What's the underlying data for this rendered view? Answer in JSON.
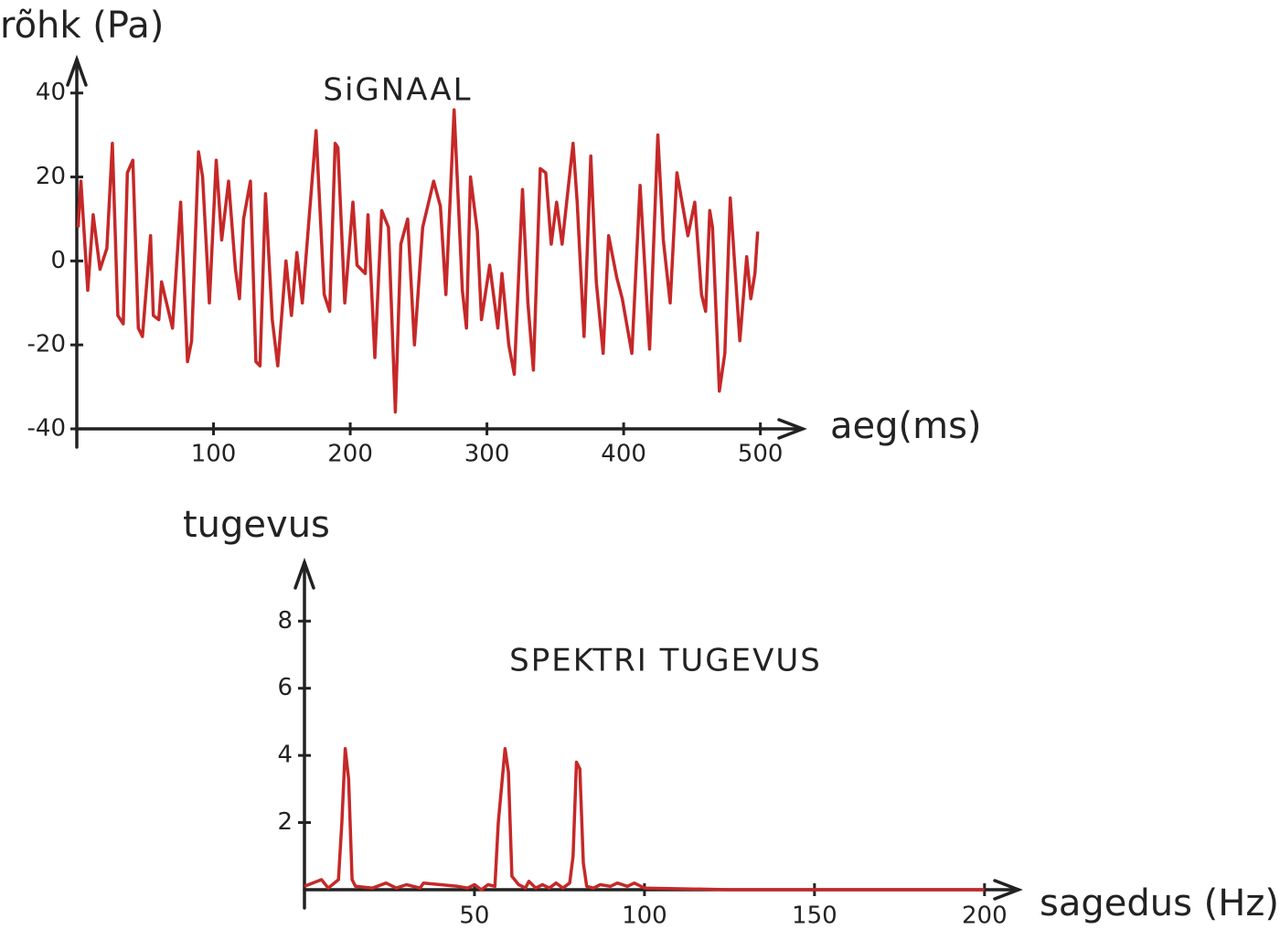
{
  "chart_data": [
    {
      "type": "line",
      "title": "SiGNAAL",
      "xlabel": "aeg(ms)",
      "ylabel": "rõhk (Pa)",
      "xlim": [
        0,
        531
      ],
      "ylim": [
        -40,
        48
      ],
      "xticks": [
        100,
        200,
        300,
        400,
        500
      ],
      "yticks": [
        -40,
        -20,
        0,
        20,
        40
      ],
      "color": "#c62828",
      "x": [
        1,
        3,
        8,
        12,
        17,
        22,
        26,
        30,
        34,
        37,
        41,
        45,
        48,
        54,
        56,
        60,
        62,
        70,
        76,
        81,
        84,
        89,
        92,
        97,
        102,
        106,
        111,
        116,
        119,
        122,
        127,
        131,
        134,
        138,
        143,
        147,
        153,
        157,
        161,
        165,
        175,
        181,
        185,
        189,
        191,
        196,
        202,
        205,
        211,
        213,
        218,
        223,
        228,
        233,
        237,
        242,
        247,
        253,
        261,
        266,
        270,
        276,
        282,
        285,
        288,
        293,
        296,
        302,
        308,
        311,
        316,
        320,
        326,
        330,
        334,
        339,
        343,
        347,
        351,
        355,
        363,
        366,
        371,
        376,
        380,
        385,
        389,
        395,
        399,
        406,
        412,
        419,
        425,
        429,
        434,
        439,
        447,
        452,
        457,
        460,
        463,
        465,
        470,
        474,
        478,
        485,
        490,
        493,
        496,
        498
      ],
      "values": [
        8,
        19,
        -7,
        11,
        -2,
        3,
        28,
        -13,
        -15,
        21,
        24,
        -16,
        -18,
        6,
        -13,
        -14,
        -5,
        -16,
        14,
        -24,
        -19,
        26,
        20,
        -10,
        24,
        5,
        19,
        -2,
        -9,
        10,
        19,
        -24,
        -25,
        16,
        -14,
        -25,
        0,
        -13,
        2,
        -10,
        31,
        -8,
        -12,
        28,
        27,
        -10,
        14,
        -1,
        -3,
        11,
        -23,
        12,
        8,
        -36,
        4,
        10,
        -20,
        8,
        19,
        13,
        -8,
        36,
        -7,
        -16,
        20,
        7,
        -14,
        -1,
        -16,
        -3,
        -20,
        -27,
        17,
        -10,
        -26,
        22,
        21,
        4,
        14,
        4,
        28,
        14,
        -18,
        25,
        -5,
        -22,
        6,
        -4,
        -9,
        -22,
        18,
        -21,
        30,
        5,
        -10,
        21,
        6,
        14,
        -8,
        -12,
        12,
        8,
        -31,
        -22,
        15,
        -19,
        1,
        -9,
        -3,
        7
      ]
    },
    {
      "type": "line",
      "title": "SPEKTRI TUGEVUS",
      "xlabel": "sagedus (Hz)",
      "ylabel": "tugevus",
      "xlim": [
        0,
        210
      ],
      "ylim": [
        0,
        9.75
      ],
      "xticks": [
        50,
        100,
        150,
        200
      ],
      "yticks": [
        2,
        4,
        6,
        8
      ],
      "color": "#c62828",
      "x": [
        0,
        5,
        7,
        10,
        11,
        12,
        13,
        14,
        15,
        20,
        24,
        27,
        30,
        34,
        35,
        45,
        48,
        50,
        52,
        54,
        56,
        57,
        59,
        60,
        61,
        63,
        65,
        66,
        68,
        70,
        72,
        74,
        76,
        78,
        79,
        80,
        81,
        82,
        83,
        85,
        87,
        90,
        92,
        95,
        97,
        100,
        125,
        200
      ],
      "values": [
        0.1,
        0.3,
        0.05,
        0.3,
        2,
        4.2,
        3.3,
        0.3,
        0.1,
        0.05,
        0.2,
        0.05,
        0.15,
        0.05,
        0.2,
        0.1,
        0.05,
        0.15,
        0,
        0.15,
        0.1,
        2,
        4.2,
        3.5,
        0.4,
        0.15,
        0.05,
        0.25,
        0.05,
        0.15,
        0.05,
        0.2,
        0.05,
        0.2,
        1,
        3.8,
        3.6,
        0.8,
        0.1,
        0.05,
        0.15,
        0.1,
        0.2,
        0.1,
        0.2,
        0.05,
        0,
        0
      ]
    }
  ]
}
